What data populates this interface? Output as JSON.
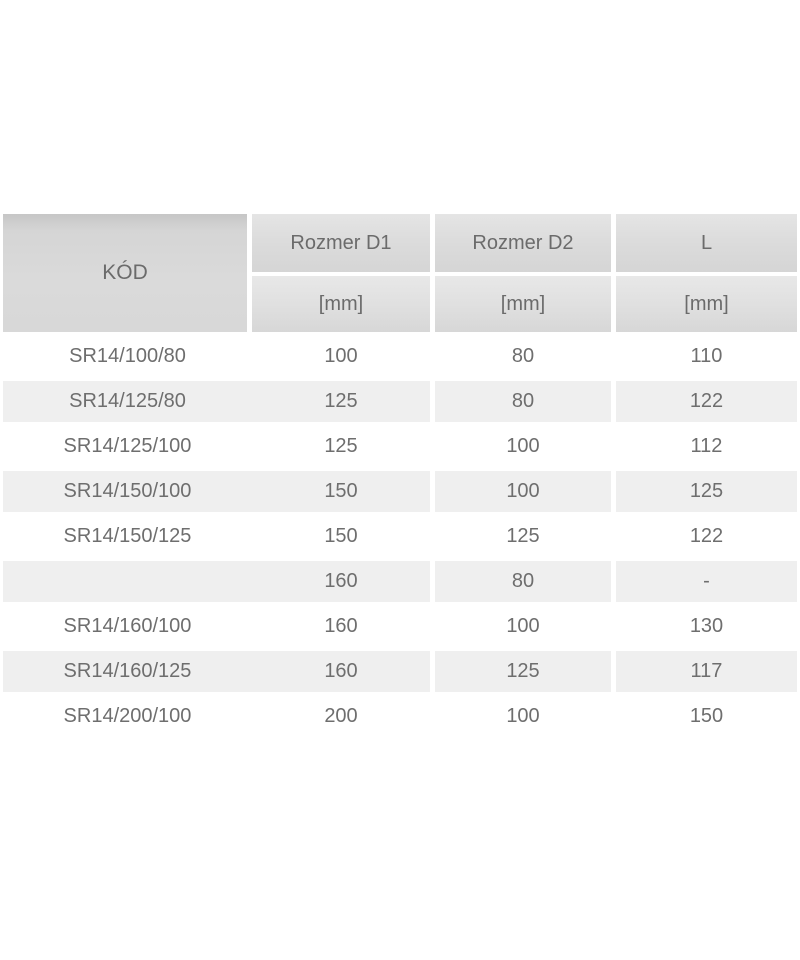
{
  "table": {
    "header": {
      "kod": "KÓD",
      "columns": [
        {
          "label": "Rozmer D1",
          "unit": "[mm]"
        },
        {
          "label": "Rozmer D2",
          "unit": "[mm]"
        },
        {
          "label": "L",
          "unit": "[mm]"
        }
      ]
    },
    "rows": [
      {
        "kod": "SR14/100/80",
        "d1": "100",
        "d2": "80",
        "l": "110"
      },
      {
        "kod": "SR14/125/80",
        "d1": "125",
        "d2": "80",
        "l": "122"
      },
      {
        "kod": "SR14/125/100",
        "d1": "125",
        "d2": "100",
        "l": "112"
      },
      {
        "kod": "SR14/150/100",
        "d1": "150",
        "d2": "100",
        "l": "125"
      },
      {
        "kod": "SR14/150/125",
        "d1": "150",
        "d2": "125",
        "l": "122"
      },
      {
        "kod": "",
        "d1": "160",
        "d2": "80",
        "l": "-"
      },
      {
        "kod": "SR14/160/100",
        "d1": "160",
        "d2": "100",
        "l": "130"
      },
      {
        "kod": "SR14/160/125",
        "d1": "160",
        "d2": "125",
        "l": "117"
      },
      {
        "kod": "SR14/200/100",
        "d1": "200",
        "d2": "100",
        "l": "150"
      }
    ],
    "colors": {
      "header_gradient_dark": "#c6c6c6",
      "header_gradient_light": "#e8e8e8",
      "row_alt_background": "#efefef",
      "row_background": "#ffffff",
      "text": "#6e6e6e"
    }
  },
  "chart_data": {
    "type": "table",
    "title": "",
    "columns": [
      "KÓD",
      "Rozmer D1 [mm]",
      "Rozmer D2 [mm]",
      "L [mm]"
    ],
    "rows": [
      [
        "SR14/100/80",
        "100",
        "80",
        "110"
      ],
      [
        "SR14/125/80",
        "125",
        "80",
        "122"
      ],
      [
        "SR14/125/100",
        "125",
        "100",
        "112"
      ],
      [
        "SR14/150/100",
        "150",
        "100",
        "125"
      ],
      [
        "SR14/150/125",
        "150",
        "125",
        "122"
      ],
      [
        "",
        "160",
        "80",
        "-"
      ],
      [
        "SR14/160/100",
        "160",
        "100",
        "130"
      ],
      [
        "SR14/160/125",
        "160",
        "125",
        "117"
      ],
      [
        "SR14/200/100",
        "200",
        "100",
        "150"
      ]
    ],
    "layout": "zebra-striped table, header with merged KÓD cell spanning two header rows, grid gaps white"
  }
}
